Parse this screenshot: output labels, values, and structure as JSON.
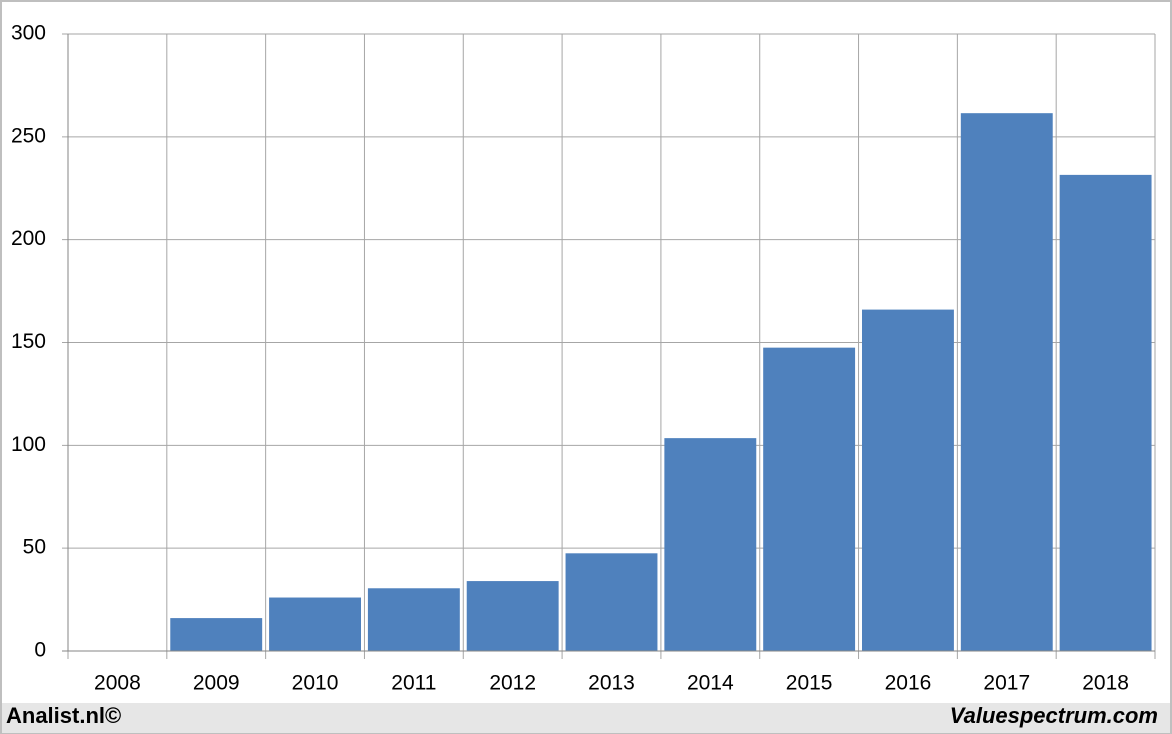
{
  "chart_data": {
    "type": "bar",
    "categories": [
      "2008",
      "2009",
      "2010",
      "2011",
      "2012",
      "2013",
      "2014",
      "2015",
      "2016",
      "2017",
      "2018"
    ],
    "values": [
      0,
      16,
      26,
      30.5,
      34,
      47.5,
      103.5,
      147.5,
      166,
      261.5,
      231.5
    ],
    "color": "#4f81bd",
    "ylim": [
      0,
      300
    ],
    "yticks": [
      0,
      50,
      100,
      150,
      200,
      250,
      300
    ],
    "grid": true
  },
  "footer": {
    "left": "Analist.nl©",
    "right": "Valuespectrum.com"
  }
}
